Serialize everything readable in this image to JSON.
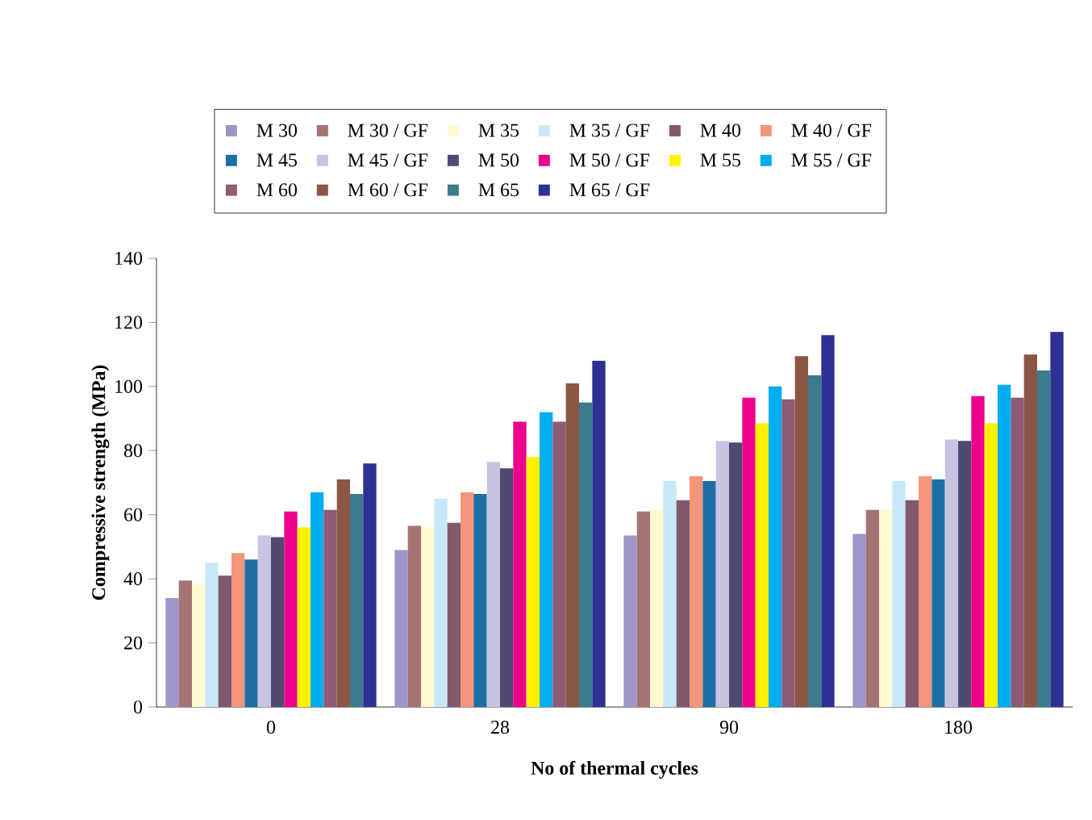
{
  "chart_data": {
    "type": "bar",
    "xlabel": "No of thermal cycles",
    "ylabel": "Compressive strength (MPa)",
    "categories": [
      "0",
      "28",
      "90",
      "180"
    ],
    "ylim": [
      0,
      140
    ],
    "yticks": [
      0,
      20,
      40,
      60,
      80,
      100,
      120,
      140
    ],
    "grid": false,
    "legend": "top",
    "series": [
      {
        "name": "M 30",
        "color": "#9e96c8",
        "values": [
          34,
          49,
          53.5,
          54
        ]
      },
      {
        "name": "M 30 / GF",
        "color": "#a47474",
        "values": [
          39.5,
          56.5,
          61,
          61.5
        ]
      },
      {
        "name": "M 35",
        "color": "#fffad2",
        "values": [
          38.5,
          56,
          61.5,
          61.5
        ]
      },
      {
        "name": "M 35 / GF",
        "color": "#c8e8f8",
        "values": [
          45,
          65,
          70.5,
          70.5
        ]
      },
      {
        "name": "M 40",
        "color": "#7e5a6c",
        "values": [
          41,
          57.5,
          64.5,
          64.5
        ]
      },
      {
        "name": "M 40 / GF",
        "color": "#f4967a",
        "values": [
          48,
          67,
          72,
          72
        ]
      },
      {
        "name": "M 45",
        "color": "#1e6ea6",
        "values": [
          46,
          66.5,
          70.5,
          71
        ]
      },
      {
        "name": "M 45 / GF",
        "color": "#c8c4e2",
        "values": [
          53.5,
          76.5,
          83,
          83.5
        ]
      },
      {
        "name": "M 50",
        "color": "#4e4a72",
        "values": [
          53,
          74.5,
          82.5,
          83
        ]
      },
      {
        "name": "M 50 / GF",
        "color": "#ec008c",
        "values": [
          61,
          89,
          96.5,
          97
        ]
      },
      {
        "name": "M 55",
        "color": "#fff200",
        "values": [
          56,
          78,
          88.5,
          88.5
        ]
      },
      {
        "name": "M 55 / GF",
        "color": "#00aeef",
        "values": [
          67,
          92,
          100,
          100.5
        ]
      },
      {
        "name": "M 60",
        "color": "#8e5a74",
        "values": [
          61.5,
          89,
          96,
          96.5
        ]
      },
      {
        "name": "M 60 / GF",
        "color": "#8c5646",
        "values": [
          71,
          101,
          109.5,
          110
        ]
      },
      {
        "name": "M 65",
        "color": "#3c7a8e",
        "values": [
          66.5,
          95,
          103.5,
          105
        ]
      },
      {
        "name": "M 65 / GF",
        "color": "#2e3192",
        "values": [
          76,
          108,
          116,
          117
        ]
      }
    ]
  }
}
